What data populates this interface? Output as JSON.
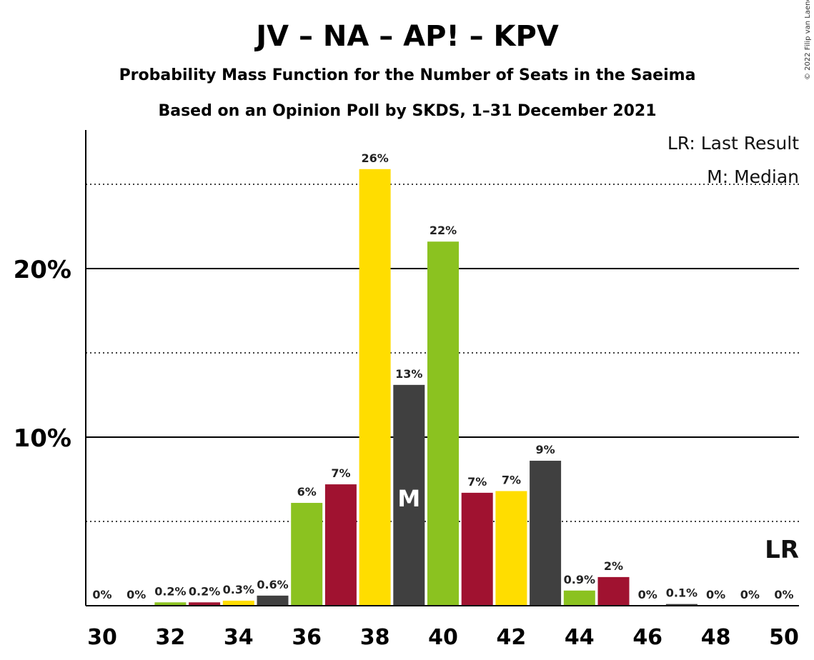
{
  "chart_data": {
    "type": "bar",
    "title": "JV – NA – AP! – KPV",
    "subtitle": "Probability Mass Function for the Number of Seats in the Saeima",
    "subtitle2": "Based on an Opinion Poll by SKDS, 1–31 December 2021",
    "copyright": "© 2022 Filip van Laenen",
    "legend": {
      "lr": "LR: Last Result",
      "median": "M: Median"
    },
    "legend_position": "top-right",
    "x": [
      30,
      31,
      32,
      33,
      34,
      35,
      36,
      37,
      38,
      39,
      40,
      41,
      42,
      43,
      44,
      45,
      46,
      47,
      48,
      49,
      50
    ],
    "values": [
      0,
      0,
      0.2,
      0.2,
      0.3,
      0.6,
      6.1,
      7.2,
      25.9,
      13.1,
      21.6,
      6.7,
      6.8,
      8.6,
      0.9,
      1.7,
      0,
      0.1,
      0,
      0,
      0
    ],
    "labels": [
      "0%",
      "0%",
      "0.2%",
      "0.2%",
      "0.3%",
      "0.6%",
      "6%",
      "7%",
      "26%",
      "13%",
      "22%",
      "7%",
      "7%",
      "9%",
      "0.9%",
      "2%",
      "0%",
      "0.1%",
      "0%",
      "0%",
      "0%"
    ],
    "bar_colors": [
      "#8BC220",
      "#A01230",
      "#8BC220",
      "#A01230",
      "#FFDD00",
      "#404040",
      "#8BC220",
      "#A01230",
      "#FFDD00",
      "#404040",
      "#8BC220",
      "#A01230",
      "#FFDD00",
      "#404040",
      "#8BC220",
      "#A01230",
      "#FFDD00",
      "#404040",
      "#8BC220",
      "#A01230",
      "#FFDD00"
    ],
    "xticks": [
      30,
      32,
      34,
      36,
      38,
      40,
      42,
      44,
      46,
      48,
      50
    ],
    "yticks": [
      {
        "value": 10,
        "label": "10%"
      },
      {
        "value": 20,
        "label": "20%"
      }
    ],
    "dotted_gridlines": [
      5,
      15,
      25
    ],
    "ylim": [
      0,
      28
    ],
    "median_seat": 39,
    "median_mark": "M",
    "last_result_seat": 50,
    "last_result_mark": "LR"
  }
}
